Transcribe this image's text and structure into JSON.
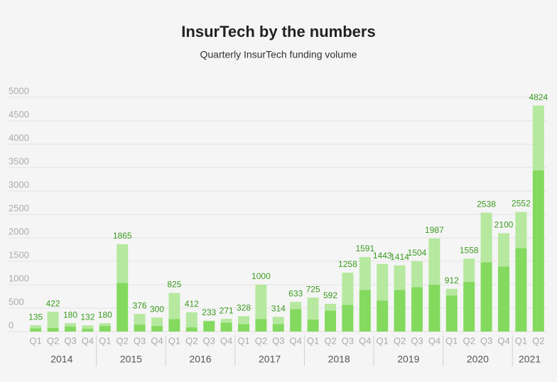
{
  "chart_data": {
    "type": "stacked-bar",
    "title": "InsurTech by the numbers",
    "subtitle": "Quarterly InsurTech funding volume",
    "categories": [
      "Q1",
      "Q2",
      "Q3",
      "Q4",
      "Q1",
      "Q2",
      "Q3",
      "Q4",
      "Q1",
      "Q2",
      "Q3",
      "Q4",
      "Q1",
      "Q2",
      "Q3",
      "Q4",
      "Q1",
      "Q2",
      "Q3",
      "Q4",
      "Q1",
      "Q2",
      "Q3",
      "Q4",
      "Q1",
      "Q2",
      "Q3",
      "Q4",
      "Q1",
      "Q2"
    ],
    "groups": [
      {
        "label": "2014",
        "size": 4
      },
      {
        "label": "2015",
        "size": 4
      },
      {
        "label": "2016",
        "size": 4
      },
      {
        "label": "2017",
        "size": 4
      },
      {
        "label": "2018",
        "size": 4
      },
      {
        "label": "2019",
        "size": 4
      },
      {
        "label": "2020",
        "size": 4
      },
      {
        "label": "2021",
        "size": 2
      }
    ],
    "series": [
      {
        "color": "#84d95f",
        "values": [
          70,
          80,
          110,
          60,
          120,
          1040,
          150,
          120,
          270,
          90,
          220,
          190,
          160,
          270,
          160,
          480,
          260,
          450,
          570,
          890,
          660,
          890,
          950,
          1000,
          770,
          1060,
          1480,
          1390,
          1780,
          3440
        ]
      },
      {
        "color": "#b6e8a0",
        "values": [
          65,
          342,
          70,
          72,
          60,
          825,
          226,
          180,
          555,
          322,
          13,
          81,
          168,
          730,
          154,
          153,
          465,
          142,
          688,
          701,
          783,
          524,
          554,
          987,
          142,
          498,
          1058,
          710,
          772,
          1384
        ]
      }
    ],
    "totals": [
      135,
      422,
      180,
      132,
      180,
      1865,
      376,
      300,
      825,
      412,
      233,
      271,
      328,
      1000,
      314,
      633,
      725,
      592,
      1258,
      1591,
      1443,
      1414,
      1504,
      1987,
      912,
      1558,
      2538,
      2100,
      2552,
      4824
    ],
    "ylim": [
      0,
      5000
    ],
    "yticks": [
      0,
      500,
      1000,
      1500,
      2000,
      2500,
      3000,
      3500,
      4000,
      4500,
      5000
    ],
    "grid": true
  }
}
